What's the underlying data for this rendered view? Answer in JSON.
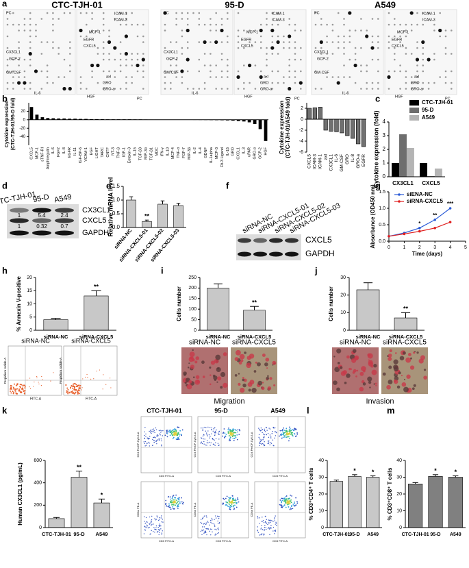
{
  "panel_labels": [
    "a",
    "b",
    "c",
    "d",
    "e",
    "f",
    "g",
    "h",
    "i",
    "j",
    "k",
    "l",
    "m"
  ],
  "array": {
    "cell_lines": [
      "CTC-TJH-01",
      "95-D",
      "A549"
    ],
    "left_labels": [
      "PC",
      "CX3CL1",
      "GCP-2",
      "GM-CSF",
      "IL-6"
    ],
    "right_labels": [
      "ICAM-1",
      "ICAM-3",
      "MCP-1",
      "EGFR",
      "CXCL5",
      "axl",
      "GRO",
      "GRO-a",
      "HGF",
      "PC"
    ]
  },
  "blot_d": {
    "lanes": [
      "CTC-TJH-01",
      "95-D",
      "A549"
    ],
    "rows": [
      "CX3CL1",
      "CXCL5",
      "GAPDH"
    ],
    "cx3cl1_ratios": [
      "1",
      "5.4",
      "2.4"
    ],
    "cxcl5_ratios": [
      "1",
      "0.32",
      "0.7"
    ]
  },
  "blot_f": {
    "lanes": [
      "siRNA-NC",
      "siRNA-CXCL5-01",
      "siRNA-CXCL5-02",
      "siRNA-CXCL5-03"
    ],
    "rows": [
      "CXCL5",
      "GAPDH"
    ]
  },
  "h_flow": {
    "x_label": "FITC-A",
    "y_label": "Propidium Iodide-A"
  },
  "image_captions": {
    "i": "Migration",
    "j": "Invasion"
  },
  "k_flow": {
    "x_label": "CD3 FITC-A",
    "y_labels": [
      "CD4 PerCP-Cy5-5-A",
      "CD8a PE-A"
    ]
  },
  "chart_data": [
    {
      "type": "bar",
      "ylabel": [
        "Cytokine expression",
        "(CTC-TJH-01/95-D fold)"
      ],
      "color": "#000000",
      "categories": [
        "CXCL5",
        "MCP-1",
        "sTNF-RI",
        "Amphiregulin",
        "IL-6",
        "FGF2",
        "IL-8",
        "EGFR",
        "IL-11",
        "IGF-BP-6",
        "VCAM-1",
        "EGF",
        "LIGHT",
        "TARC",
        "CNTF",
        "NT-3",
        "TNF-β",
        "IGF-1",
        "Eotaxin-3",
        "IL-15",
        "TGF-β3",
        "MIP-3α",
        "TGF-β1",
        "MDC",
        "IFN-γ",
        "IL-10",
        "MCP-4",
        "TNF-α",
        "FGF-7",
        "MIP-3β",
        "IL-2",
        "IL-4",
        "GDNF",
        "IL-1alpha",
        "MCP-3",
        "Flt-3 Ligand",
        "IL-1β",
        "GRO",
        "CXCL1",
        "IL-3",
        "uPAR",
        "GRO-α",
        "GCP-2",
        "HGF"
      ],
      "values": [
        30,
        12,
        6,
        4,
        3.5,
        3,
        3,
        2.5,
        2.5,
        2,
        2,
        1.5,
        1.5,
        1.5,
        1,
        1,
        1,
        1,
        1,
        0.8,
        0.8,
        0.6,
        0.5,
        0.5,
        0.4,
        0.3,
        0.2,
        0.2,
        -0.2,
        -0.3,
        -0.4,
        -0.5,
        -0.6,
        -0.8,
        -1,
        -1.2,
        -1.5,
        -2,
        -3,
        -4,
        -6,
        -10,
        -22,
        -50
      ],
      "ylim": [
        -60,
        40
      ],
      "yticks": [
        -40,
        -20,
        0,
        20
      ]
    },
    {
      "type": "bar",
      "ylabel": [
        "Cytokine expression",
        "(CTC-TJH-01/A549 fold)"
      ],
      "color": "#707070",
      "outline": "#000000",
      "categories": [
        "CXCL5",
        "ICAM-3",
        "ICAM-1",
        "axl",
        "CX3CL1",
        "IL-6",
        "GM-CSF",
        "GRO",
        "IL-8",
        "GRO-a",
        "EGFR"
      ],
      "values": [
        2,
        2.1,
        2.2,
        -2,
        -2.2,
        -2.3,
        -2.5,
        -3,
        -3.5,
        -4.5,
        -5
      ],
      "ylim": [
        -6,
        3
      ],
      "yticks": [
        -6,
        -4,
        -2,
        0,
        2
      ]
    },
    {
      "type": "bar",
      "ylabel": "Cytokine expression (fold)",
      "categories": [
        "CX3CL1",
        "CXCL5"
      ],
      "series": [
        {
          "name": "CTC-TJH-01",
          "color": "#000000",
          "values": [
            1,
            1
          ]
        },
        {
          "name": "95-D",
          "color": "#6e6e6e",
          "values": [
            3.1,
            0.05
          ]
        },
        {
          "name": "A549",
          "color": "#b4b4b4",
          "values": [
            2.1,
            0.6
          ]
        }
      ],
      "ylim": [
        0,
        4
      ],
      "yticks": [
        0,
        1,
        2,
        3,
        4
      ]
    },
    {
      "type": "bar",
      "ylabel": "Relative mRNA level",
      "color": "#c8c8c8",
      "outline": "#000000",
      "categories": [
        "siRNA-NC",
        "siRNA-CXCL5-01",
        "siRNA-CXCL5-02",
        "siRNA-CXCL5-03"
      ],
      "values": [
        1.0,
        0.22,
        0.85,
        0.8
      ],
      "errors": [
        0.12,
        0.05,
        0.12,
        0.08
      ],
      "significance": [
        null,
        "**",
        null,
        null
      ],
      "ylim": [
        0,
        1.5
      ],
      "yticks": [
        {
          "value": 0,
          "label": "0.0"
        },
        {
          "value": 0.5,
          "label": "0.5"
        },
        {
          "value": 1,
          "label": "1.0"
        },
        {
          "value": 1.5,
          "label": "1.5"
        }
      ]
    },
    {
      "type": "line",
      "ylabel": "Absorbance (OD450 nm)",
      "xlabel": "Time (days)",
      "x": [
        0,
        1,
        2,
        3,
        4
      ],
      "series": [
        {
          "name": "siENA-NC",
          "color": "#2a5bd7",
          "values": [
            0.15,
            0.25,
            0.4,
            0.65,
            1.0
          ]
        },
        {
          "name": "siRNA-CXCL5",
          "color": "#e02020",
          "values": [
            0.15,
            0.22,
            0.3,
            0.4,
            0.58
          ]
        }
      ],
      "annotations": [
        {
          "x": 2,
          "text": "*"
        },
        {
          "x": 3,
          "text": "**"
        },
        {
          "x": 4,
          "text": "***"
        }
      ],
      "xlim": [
        0,
        5
      ],
      "xticks": [
        0,
        1,
        2,
        3,
        4,
        5
      ],
      "ylim": [
        0,
        1.5
      ],
      "yticks": [
        {
          "value": 0,
          "label": "0.0"
        },
        {
          "value": 0.5,
          "label": "0.5"
        },
        {
          "value": 1,
          "label": "1.0"
        },
        {
          "value": 1.5,
          "label": "1.5"
        }
      ]
    },
    {
      "type": "bar",
      "ylabel": "% Annexin V-positive",
      "color": "#c8c8c8",
      "outline": "#000000",
      "categories": [
        "siRNA-NC",
        "siRNA-CXCL5"
      ],
      "values": [
        4,
        13
      ],
      "errors": [
        0.5,
        2
      ],
      "significance": [
        null,
        "**"
      ],
      "ylim": [
        0,
        20
      ],
      "yticks": [
        0,
        5,
        10,
        15,
        20
      ]
    },
    {
      "type": "bar",
      "ylabel": "Cells number",
      "color": "#c8c8c8",
      "outline": "#000000",
      "categories": [
        "siRNA-NC",
        "siRNA-CXCL5"
      ],
      "values": [
        200,
        95
      ],
      "errors": [
        20,
        18
      ],
      "significance": [
        null,
        "**"
      ],
      "ylim": [
        0,
        250
      ],
      "yticks": [
        0,
        50,
        100,
        150,
        200,
        250
      ]
    },
    {
      "type": "bar",
      "ylabel": "Cells number",
      "color": "#c8c8c8",
      "outline": "#000000",
      "categories": [
        "siRNA-NC",
        "siRNA-CXCL5"
      ],
      "values": [
        23,
        7
      ],
      "errors": [
        4,
        3
      ],
      "significance": [
        null,
        "**"
      ],
      "ylim": [
        0,
        30
      ],
      "yticks": [
        0,
        10,
        20,
        30
      ]
    },
    {
      "type": "bar",
      "ylabel": "Human CX3CL1 (pg/mL)",
      "color": "#c8c8c8",
      "outline": "#000000",
      "categories": [
        "CTC-TJH-01",
        "95-D",
        "A549"
      ],
      "values": [
        80,
        450,
        220
      ],
      "errors": [
        10,
        55,
        35
      ],
      "significance": [
        null,
        "**",
        "*"
      ],
      "ylim": [
        0,
        600
      ],
      "yticks": [
        0,
        200,
        400,
        600
      ]
    },
    {
      "type": "bar",
      "ylabel": "% CD3⁺CD4⁺ T cells",
      "color": "#c8c8c8",
      "outline": "#000000",
      "categories": [
        "CTC-TJH-01",
        "95-D",
        "A549"
      ],
      "values": [
        27.5,
        30.5,
        30
      ],
      "errors": [
        0.8,
        1,
        0.8
      ],
      "significance": [
        null,
        "*",
        "*"
      ],
      "ylim": [
        0,
        40
      ],
      "yticks": [
        0,
        10,
        20,
        30,
        40
      ]
    },
    {
      "type": "bar",
      "ylabel": "% CD3⁺CD8⁺ T cells",
      "color": "#808080",
      "outline": "#000000",
      "categories": [
        "CTC-TJH-01",
        "95-D",
        "A549"
      ],
      "values": [
        26,
        30.5,
        30
      ],
      "errors": [
        0.8,
        1,
        0.8
      ],
      "significance": [
        null,
        "*",
        "*"
      ],
      "ylim": [
        0,
        40
      ],
      "yticks": [
        0,
        10,
        20,
        30,
        40
      ]
    }
  ]
}
